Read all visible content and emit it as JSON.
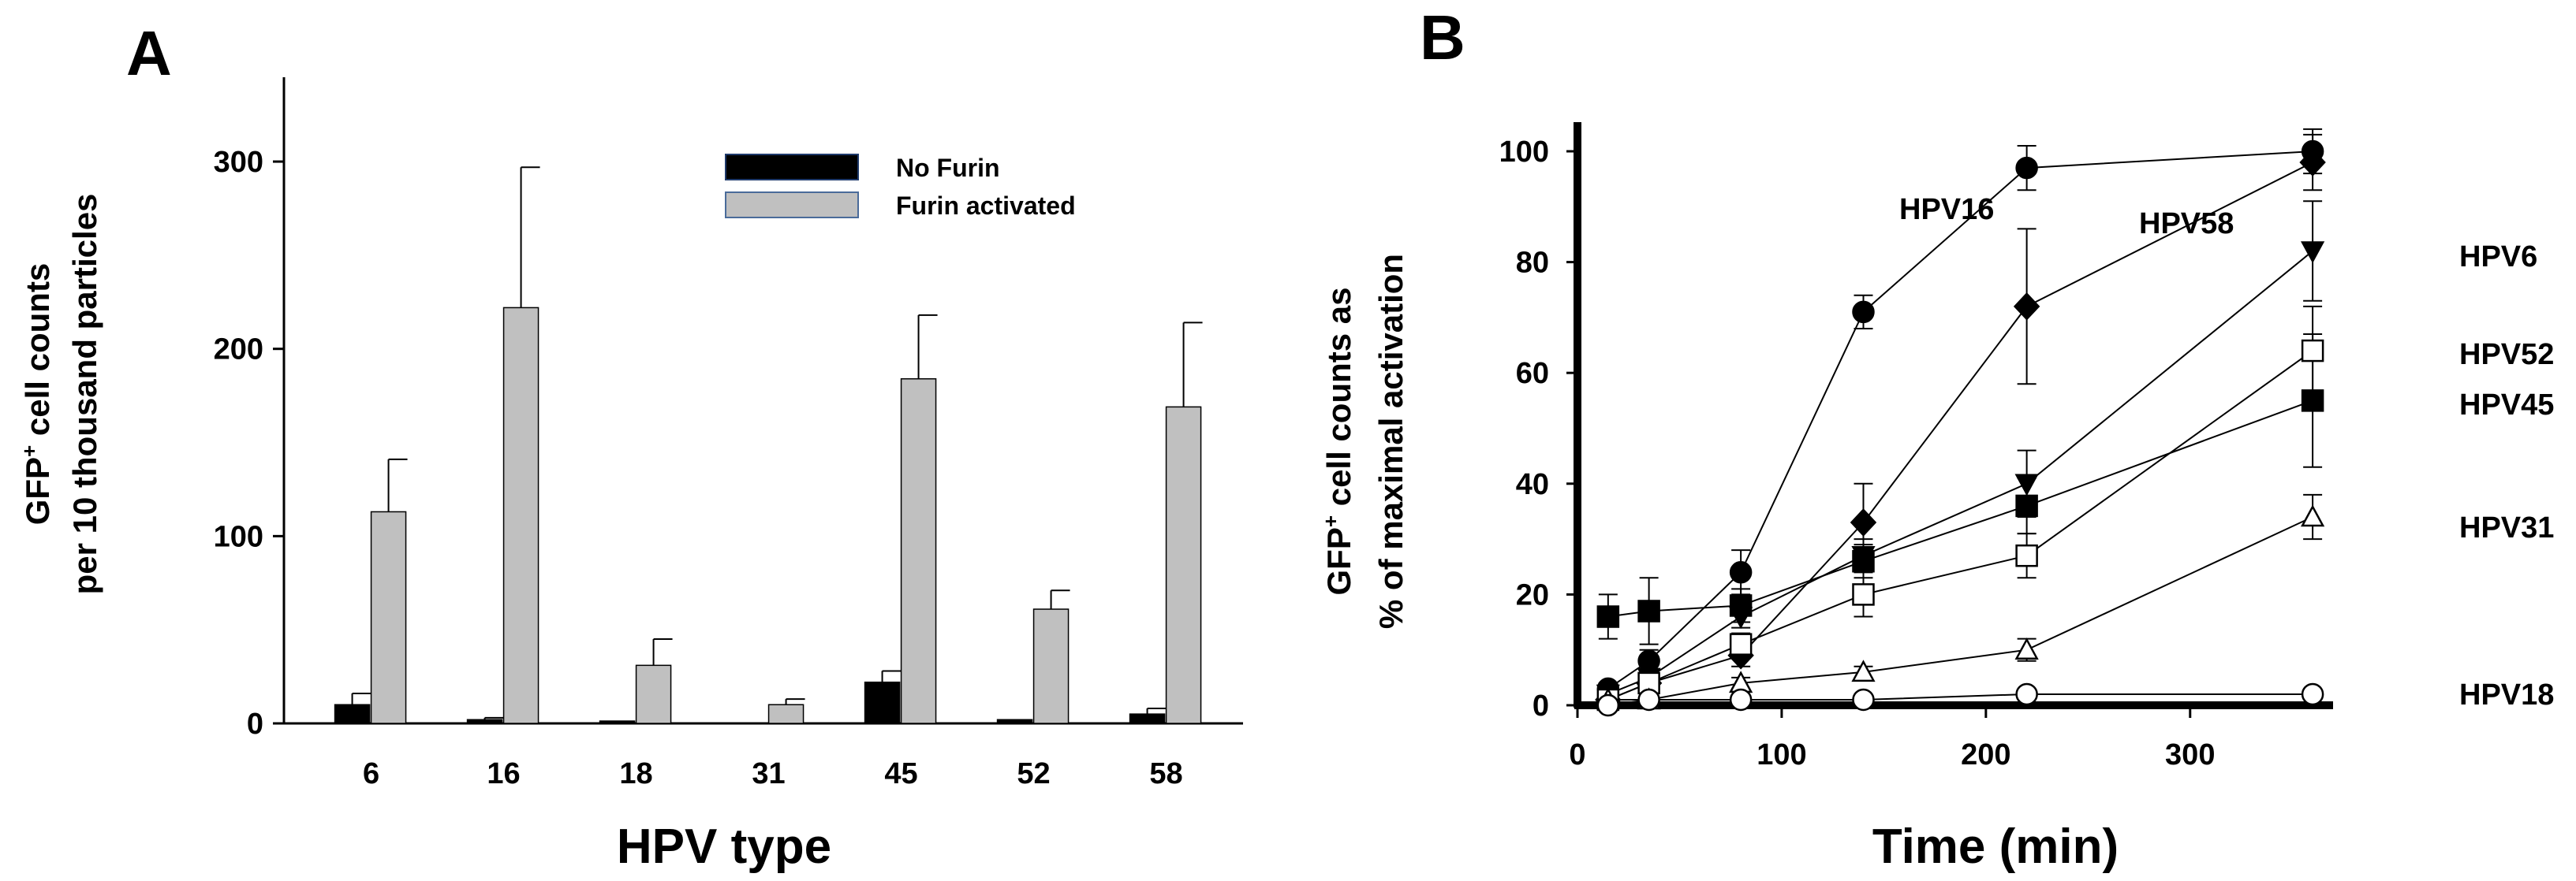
{
  "chart_data": [
    {
      "panel": "A",
      "type": "bar",
      "title": "",
      "xlabel": "HPV  type",
      "ylabel_line1_pre": "GFP",
      "ylabel_line1_sup": "+",
      "ylabel_line1_post": " cell counts",
      "ylabel_line2": "per 10 thousand particles",
      "ylim": [
        0,
        340
      ],
      "yticks": [
        0,
        100,
        200,
        300
      ],
      "categories": [
        "6",
        "16",
        "18",
        "31",
        "45",
        "52",
        "58"
      ],
      "legend_position": "top-right",
      "series": [
        {
          "name": "No Furin",
          "color": "#000000",
          "values": [
            10,
            2,
            1,
            0,
            22,
            2,
            5
          ],
          "errors": [
            6,
            1,
            0,
            0,
            6,
            0,
            3
          ]
        },
        {
          "name": "Furin activated",
          "color": "#c0c0c0",
          "values": [
            113,
            222,
            31,
            10,
            184,
            61,
            169
          ],
          "errors": [
            28,
            75,
            14,
            3,
            34,
            10,
            45
          ]
        }
      ]
    },
    {
      "panel": "B",
      "type": "line",
      "title": "",
      "xlabel": "Time (min)",
      "ylabel_line1_pre": "GFP",
      "ylabel_line1_sup": "+",
      "ylabel_line1_post": " cell counts as",
      "ylabel_line2": "% of maximal activation",
      "xlim": [
        0,
        370
      ],
      "ylim": [
        0,
        105
      ],
      "xticks": [
        0,
        100,
        200,
        300
      ],
      "yticks": [
        0,
        20,
        40,
        60,
        80,
        100
      ],
      "series": [
        {
          "name": "HPV16",
          "marker": "circle",
          "filled": true,
          "x": [
            15,
            35,
            80,
            140,
            220,
            360
          ],
          "y": [
            3,
            8,
            24,
            71,
            97,
            100
          ],
          "err": [
            1,
            2,
            4,
            3,
            4,
            4
          ]
        },
        {
          "name": "HPV58",
          "marker": "diamond",
          "filled": true,
          "x": [
            15,
            35,
            80,
            140,
            220,
            360
          ],
          "y": [
            1,
            4,
            9,
            33,
            72,
            98
          ],
          "err": [
            0,
            1,
            2,
            7,
            14,
            5
          ]
        },
        {
          "name": "HPV6",
          "marker": "triangle-down",
          "filled": true,
          "x": [
            15,
            35,
            80,
            140,
            220,
            360
          ],
          "y": [
            2,
            5,
            16,
            27,
            40,
            82
          ],
          "err": [
            0,
            1,
            2,
            3,
            6,
            9
          ]
        },
        {
          "name": "HPV52",
          "marker": "square",
          "filled": false,
          "x": [
            15,
            35,
            80,
            140,
            220,
            360
          ],
          "y": [
            1,
            4,
            11,
            20,
            27,
            64
          ],
          "err": [
            0,
            1,
            2,
            4,
            4,
            8
          ]
        },
        {
          "name": "HPV45",
          "marker": "square",
          "filled": true,
          "x": [
            15,
            35,
            80,
            140,
            220,
            360
          ],
          "y": [
            16,
            17,
            18,
            26,
            36,
            55
          ],
          "err": [
            4,
            6,
            3,
            3,
            5,
            12
          ]
        },
        {
          "name": "HPV31",
          "marker": "triangle-up",
          "filled": false,
          "x": [
            15,
            35,
            80,
            140,
            220,
            360
          ],
          "y": [
            1,
            1,
            4,
            6,
            10,
            34
          ],
          "err": [
            0,
            0,
            1,
            1,
            2,
            4
          ]
        },
        {
          "name": "HPV18",
          "marker": "circle",
          "filled": false,
          "x": [
            15,
            35,
            80,
            140,
            220,
            360
          ],
          "y": [
            0,
            1,
            1,
            1,
            2,
            2
          ],
          "err": [
            0,
            0,
            0,
            0,
            0,
            0
          ]
        }
      ]
    }
  ]
}
